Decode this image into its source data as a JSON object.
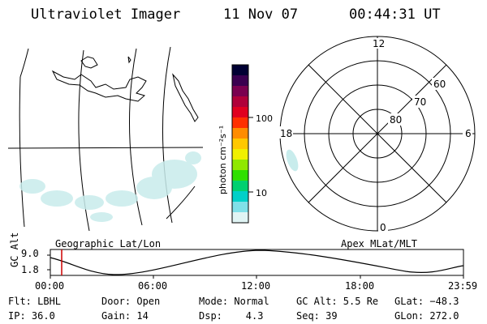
{
  "header": {
    "title": "Ultraviolet Imager",
    "date": "11 Nov 07",
    "time": "00:44:31 UT"
  },
  "colorbar": {
    "label": "photon cm⁻²s⁻¹",
    "ticks": [
      "100",
      "10"
    ],
    "colors": [
      "#000033",
      "#3a0050",
      "#7a0050",
      "#b0003a",
      "#e00020",
      "#ff3000",
      "#ff8c00",
      "#ffc800",
      "#f0f000",
      "#90e800",
      "#30e000",
      "#00d070",
      "#00d0c8",
      "#80e0e8",
      "#e0f4f4"
    ]
  },
  "polar": {
    "lat_labels": [
      "80",
      "70",
      "60"
    ],
    "mlt_labels": {
      "top": "12",
      "right": "6",
      "bottom": "0",
      "left": "18"
    }
  },
  "orbit": {
    "ylabel": "GC Alt",
    "yticks": [
      "9.0",
      "1.8"
    ],
    "left_title": "Geographic Lat/Lon",
    "right_title": "Apex MLat/MLT",
    "xticks": [
      "00:00",
      "06:00",
      "12:00",
      "18:00",
      "23:59"
    ],
    "marker_color": "#cc0000"
  },
  "info": {
    "row1": [
      "Flt: LBHL",
      "Door: Open",
      "Mode: Normal",
      "GC Alt: 5.5 Re",
      "GLat: −48.3"
    ],
    "row2": [
      "IP: 36.0",
      "Gain: 14",
      "Dsp:    4.3",
      "Seq: 39",
      "GLon: 272.0"
    ]
  }
}
